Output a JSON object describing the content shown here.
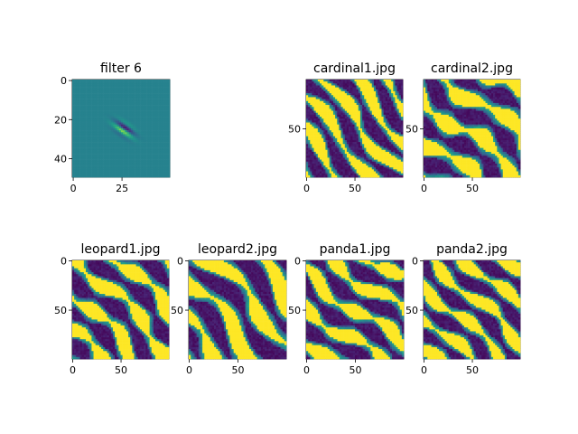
{
  "figure": {
    "colors": {
      "background": "#ffffff",
      "axis": "#000000",
      "viridis_low": "#440154",
      "viridis_mid": "#21918c",
      "viridis_high": "#fde725"
    }
  },
  "chart_data": [
    {
      "type": "heatmap",
      "title": "filter 6",
      "xlim": [
        0,
        49
      ],
      "ylim": [
        49,
        0
      ],
      "xticks": [
        0,
        25
      ],
      "yticks": [
        0,
        20,
        40
      ],
      "pattern": "gabor",
      "colormap": "viridis"
    },
    {
      "type": "heatmap",
      "title": "cardinal1.jpg",
      "xlim": [
        0,
        99
      ],
      "ylim": [
        99,
        0
      ],
      "xticks": [
        0,
        50
      ],
      "yticks": [
        50
      ],
      "pattern": "response",
      "colormap": "viridis"
    },
    {
      "type": "heatmap",
      "title": "cardinal2.jpg",
      "xlim": [
        0,
        99
      ],
      "ylim": [
        99,
        0
      ],
      "xticks": [
        0,
        50
      ],
      "yticks": [
        50
      ],
      "pattern": "response",
      "colormap": "viridis"
    },
    {
      "type": "heatmap",
      "title": "leopard1.jpg",
      "xlim": [
        0,
        99
      ],
      "ylim": [
        99,
        0
      ],
      "xticks": [
        0,
        50
      ],
      "yticks": [
        0,
        50
      ],
      "pattern": "response",
      "colormap": "viridis"
    },
    {
      "type": "heatmap",
      "title": "leopard2.jpg",
      "xlim": [
        0,
        99
      ],
      "ylim": [
        99,
        0
      ],
      "xticks": [
        0,
        50
      ],
      "yticks": [
        0,
        50
      ],
      "pattern": "response",
      "colormap": "viridis"
    },
    {
      "type": "heatmap",
      "title": "panda1.jpg",
      "xlim": [
        0,
        99
      ],
      "ylim": [
        99,
        0
      ],
      "xticks": [
        0,
        50
      ],
      "yticks": [
        0,
        50
      ],
      "pattern": "response",
      "colormap": "viridis"
    },
    {
      "type": "heatmap",
      "title": "panda2.jpg",
      "xlim": [
        0,
        99
      ],
      "ylim": [
        99,
        0
      ],
      "xticks": [
        0,
        50
      ],
      "yticks": [
        0,
        50
      ],
      "pattern": "response",
      "colormap": "viridis"
    }
  ]
}
